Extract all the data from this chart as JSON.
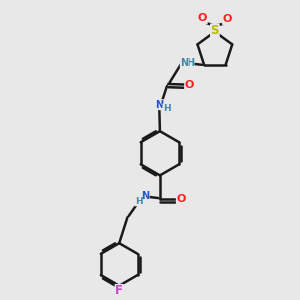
{
  "bg": "#e8e8e8",
  "bc": "#1a1a1a",
  "nc": "#2255cc",
  "oc": "#ff2020",
  "sc": "#bbbb00",
  "fc": "#cc44cc",
  "nhc": "#4488aa",
  "lw": 1.8,
  "fig_w": 3.0,
  "fig_h": 3.0,
  "dpi": 100,
  "xlim": [
    0,
    10
  ],
  "ylim": [
    0,
    10
  ]
}
